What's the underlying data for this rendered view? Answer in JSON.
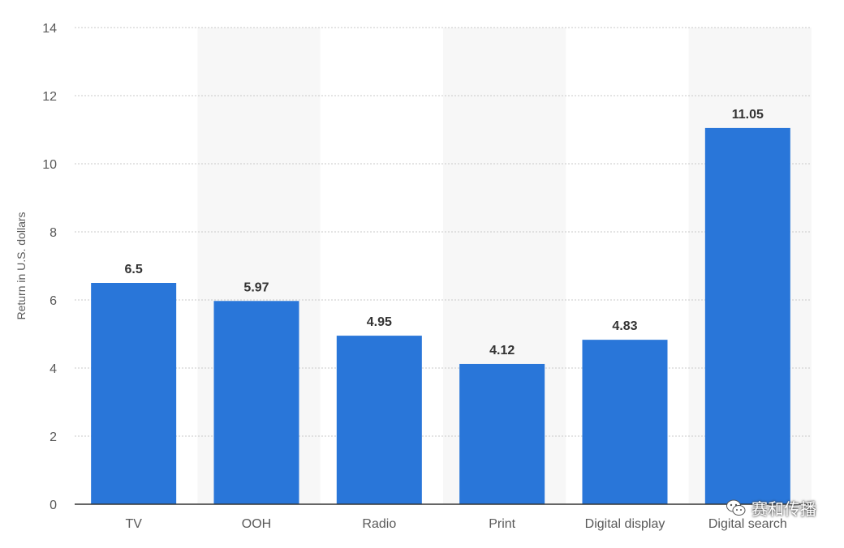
{
  "chart_data": {
    "type": "bar",
    "categories": [
      "TV",
      "OOH",
      "Radio",
      "Print",
      "Digital display",
      "Digital search"
    ],
    "values": [
      6.5,
      5.97,
      4.95,
      4.12,
      4.83,
      11.05
    ],
    "value_labels": [
      "6.5",
      "5.97",
      "4.95",
      "4.12",
      "4.83",
      "11.05"
    ],
    "ylabel": "Return in U.S. dollars",
    "ylim": [
      0,
      14
    ],
    "yticks": [
      0,
      2,
      4,
      6,
      8,
      10,
      12,
      14
    ],
    "grid": true,
    "bar_color": "#2976D9",
    "band_color": "#F7F7F7"
  },
  "watermark": {
    "text": "赛和传播",
    "icon": "wechat-icon"
  }
}
